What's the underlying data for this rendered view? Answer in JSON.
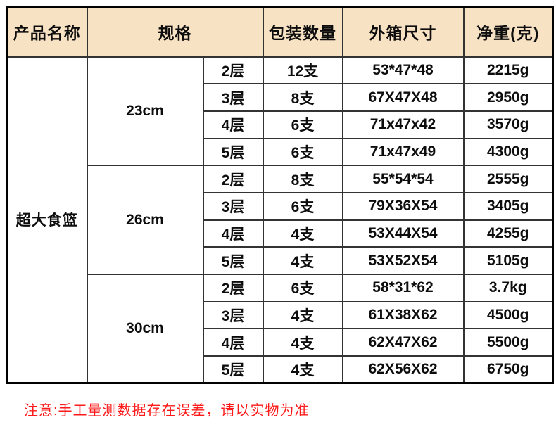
{
  "table": {
    "headers": [
      "产品名称",
      "规格",
      "包装数量",
      "外箱尺寸",
      "净重(克)"
    ],
    "product_name": "超大食篮",
    "groups": [
      {
        "size": "23cm",
        "rows": [
          {
            "layer": "2层",
            "qty": "12支",
            "box": "53*47*48",
            "weight": "2215g"
          },
          {
            "layer": "3层",
            "qty": "8支",
            "box": "67X47X48",
            "weight": "2950g"
          },
          {
            "layer": "4层",
            "qty": "6支",
            "box": "71x47x42",
            "weight": "3570g"
          },
          {
            "layer": "5层",
            "qty": "6支",
            "box": "71x47x49",
            "weight": "4300g"
          }
        ]
      },
      {
        "size": "26cm",
        "rows": [
          {
            "layer": "2层",
            "qty": "8支",
            "box": "55*54*54",
            "weight": "2555g"
          },
          {
            "layer": "3层",
            "qty": "6支",
            "box": "79X36X54",
            "weight": "3405g"
          },
          {
            "layer": "4层",
            "qty": "4支",
            "box": "53X44X54",
            "weight": "4255g"
          },
          {
            "layer": "5层",
            "qty": "4支",
            "box": "53X52X54",
            "weight": "5105g"
          }
        ]
      },
      {
        "size": "30cm",
        "rows": [
          {
            "layer": "2层",
            "qty": "6支",
            "box": "58*31*62",
            "weight": "3.7kg"
          },
          {
            "layer": "3层",
            "qty": "4支",
            "box": "61X38X62",
            "weight": "4500g"
          },
          {
            "layer": "4层",
            "qty": "4支",
            "box": "62X47X62",
            "weight": "5500g"
          },
          {
            "layer": "5层",
            "qty": "4支",
            "box": "62X56X62",
            "weight": "6750g"
          }
        ]
      }
    ]
  },
  "note": "注意:手工量测数据存在误差，请以实物为准",
  "colors": {
    "header_bg": "#f8e2c4",
    "qty_red": "#fe0000",
    "note_red": "#fd1a1a",
    "border_inner": "#333333",
    "border_outer": "#000000",
    "text": "#0d0d0d"
  }
}
